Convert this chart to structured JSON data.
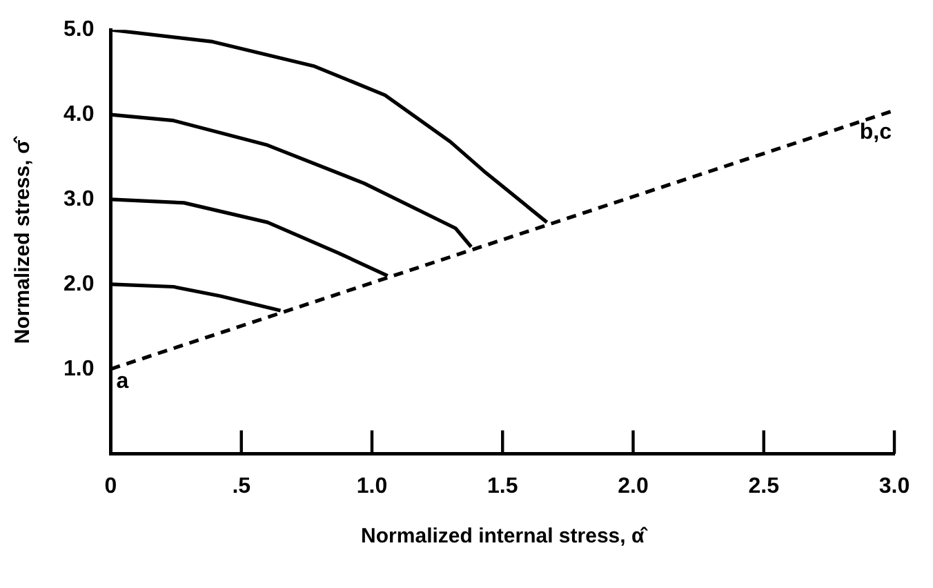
{
  "chart_data": {
    "type": "line",
    "xlabel": "Normalized internal stress, α̂",
    "ylabel": "Normalized stress, σ̂",
    "xlim": [
      0,
      3.0
    ],
    "ylim": [
      0,
      5.0
    ],
    "xticks": [
      0,
      {
        "value": 0.5,
        "label": ".5"
      },
      {
        "value": 1,
        "label": "1.0"
      },
      {
        "value": 1.5,
        "label": "1.5"
      },
      {
        "value": 2,
        "label": "2.0"
      },
      {
        "value": 2.5,
        "label": "2.5"
      },
      {
        "value": 3,
        "label": "3.0"
      }
    ],
    "yticks": [
      {
        "value": 1,
        "label": "1.0"
      },
      {
        "value": 2,
        "label": "2.0"
      },
      {
        "value": 3,
        "label": "3.0"
      },
      {
        "value": 4,
        "label": "4.0"
      },
      {
        "value": 5,
        "label": "5.0"
      }
    ],
    "grid": false,
    "legend": false,
    "marker": "none",
    "series": [
      {
        "color": "#000000",
        "line_style": "solid",
        "x": [
          0,
          0.24,
          0.42,
          0.65
        ],
        "values": [
          2.0,
          1.97,
          1.86,
          1.69
        ]
      },
      {
        "color": "#000000",
        "line_style": "solid",
        "x": [
          0,
          0.28,
          0.6,
          0.87,
          1.06
        ],
        "values": [
          3.0,
          2.96,
          2.73,
          2.37,
          2.1
        ]
      },
      {
        "color": "#000000",
        "line_style": "solid",
        "x": [
          0,
          0.24,
          0.6,
          0.97,
          1.32,
          1.38
        ],
        "values": [
          4.0,
          3.93,
          3.64,
          3.19,
          2.66,
          2.44
        ]
      },
      {
        "color": "#000000",
        "line_style": "solid",
        "x": [
          0,
          0.39,
          0.78,
          1.05,
          1.3,
          1.43,
          1.67
        ],
        "values": [
          5.0,
          4.86,
          4.57,
          4.23,
          3.68,
          3.33,
          2.73
        ]
      },
      {
        "color": "#000000",
        "line_style": "dashed",
        "x": [
          0,
          3.0
        ],
        "values": [
          1.0,
          4.05
        ]
      }
    ],
    "annotations": [
      {
        "text": "a",
        "x": 0,
        "y": 1.0
      },
      {
        "text": "b,c",
        "x": 3.0,
        "y": 4.05
      }
    ]
  }
}
